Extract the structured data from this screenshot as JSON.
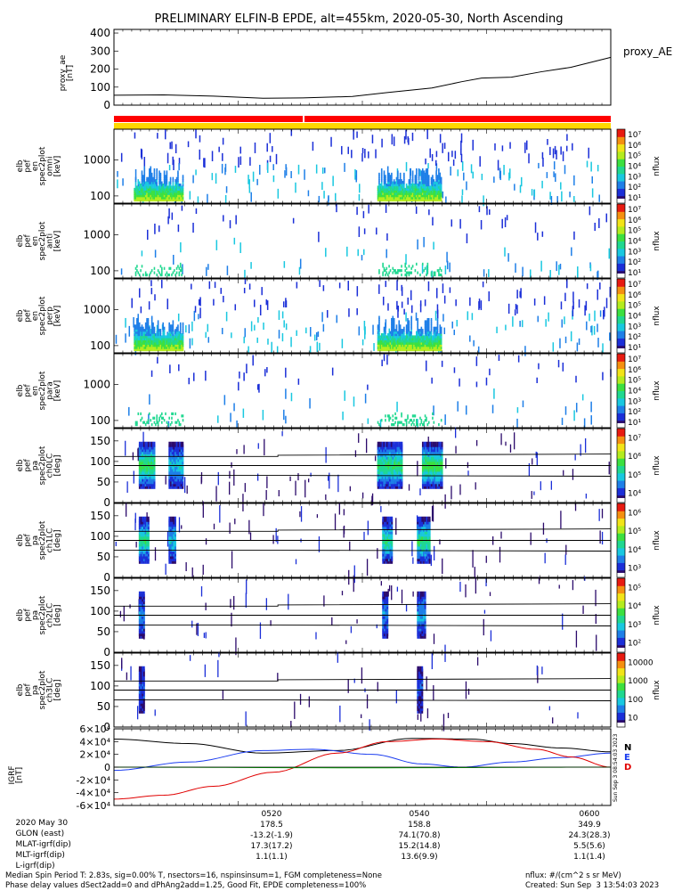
{
  "title": "PRELIMINARY ELFIN-B EPDE, alt=455km, 2020-05-30, North Ascending",
  "colors": {
    "ae_line": "#000000",
    "bar_red": "#ff0000",
    "bar_yellow": "#ffd700",
    "grf_n": "#000000",
    "grf_e": "#1a3cf0",
    "grf_d": "#e00000",
    "grf_z": "#00b000"
  },
  "chart_data": [
    {
      "type": "line",
      "panel": "proxy_ae",
      "ylabel": "proxy_ae\n[nT]",
      "ylabel_lines": [
        "proxy_ae",
        "[nT]"
      ],
      "yticks": [
        "0",
        "100",
        "200",
        "300",
        "400"
      ],
      "ylim": [
        0,
        420
      ],
      "right_label": "proxy_AE",
      "series": [
        {
          "name": "proxy_AE",
          "x": [
            0,
            10,
            20,
            30,
            38,
            48,
            55,
            64,
            70,
            74,
            80,
            86,
            92,
            100
          ],
          "y": [
            55,
            57,
            50,
            38,
            40,
            48,
            70,
            95,
            130,
            150,
            155,
            185,
            210,
            265
          ]
        }
      ]
    },
    {
      "type": "heatmap",
      "panel": "spec_omni",
      "ylabel_lines": [
        "elb",
        "pef",
        "en",
        "spec2plot",
        "omni",
        "[keV]"
      ],
      "yticks": [
        "100",
        "1000"
      ],
      "colorbar": {
        "label": "nflux",
        "ticks": [
          "10¹",
          "10²",
          "10³",
          "10⁴",
          "10⁵",
          "10⁶",
          "10⁷"
        ]
      }
    },
    {
      "type": "heatmap",
      "panel": "spec_anti",
      "ylabel_lines": [
        "elb",
        "pef",
        "en",
        "spec2plot",
        "anti",
        "[keV]"
      ],
      "yticks": [
        "100",
        "1000"
      ],
      "colorbar": {
        "label": "nflux",
        "ticks": [
          "10¹",
          "10²",
          "10³",
          "10⁴",
          "10⁵",
          "10⁶",
          "10⁷"
        ]
      }
    },
    {
      "type": "heatmap",
      "panel": "spec_perp",
      "ylabel_lines": [
        "elb",
        "pef",
        "en",
        "spec2plot",
        "perp",
        "[keV]"
      ],
      "yticks": [
        "100",
        "1000"
      ],
      "colorbar": {
        "label": "nflux",
        "ticks": [
          "10¹",
          "10²",
          "10³",
          "10⁴",
          "10⁵",
          "10⁶",
          "10⁷"
        ]
      }
    },
    {
      "type": "heatmap",
      "panel": "spec_para",
      "ylabel_lines": [
        "elb",
        "pef",
        "en",
        "spec2plot",
        "para",
        "[keV]"
      ],
      "yticks": [
        "100",
        "1000"
      ],
      "colorbar": {
        "label": "nflux",
        "ticks": [
          "10¹",
          "10²",
          "10³",
          "10⁴",
          "10⁵",
          "10⁶",
          "10⁷"
        ]
      }
    },
    {
      "type": "heatmap",
      "panel": "pa_ch0",
      "ylabel_lines": [
        "elb",
        "pef",
        "pa",
        "spec2plot",
        "ch0LC",
        "[deg]"
      ],
      "yticks": [
        "0",
        "50",
        "100",
        "150"
      ],
      "colorbar": {
        "label": "nflux",
        "ticks": [
          "10⁴",
          "10⁵",
          "10⁶",
          "10⁷"
        ]
      }
    },
    {
      "type": "heatmap",
      "panel": "pa_ch1",
      "ylabel_lines": [
        "elb",
        "pef",
        "pa",
        "spec2plot",
        "ch1LC",
        "[deg]"
      ],
      "yticks": [
        "0",
        "50",
        "100",
        "150"
      ],
      "colorbar": {
        "label": "nflux",
        "ticks": [
          "10³",
          "10⁴",
          "10⁵",
          "10⁶"
        ]
      }
    },
    {
      "type": "heatmap",
      "panel": "pa_ch2",
      "ylabel_lines": [
        "elb",
        "pef",
        "pa",
        "spec2plot",
        "ch2LC",
        "[deg]"
      ],
      "yticks": [
        "0",
        "50",
        "100",
        "150"
      ],
      "colorbar": {
        "label": "nflux",
        "ticks": [
          "10²",
          "10³",
          "10⁴",
          "10⁵"
        ]
      }
    },
    {
      "type": "heatmap",
      "panel": "pa_ch3",
      "ylabel_lines": [
        "elb",
        "pef",
        "pa",
        "spec2plot",
        "ch3LC",
        "[deg]"
      ],
      "yticks": [
        "0",
        "50",
        "100",
        "150"
      ],
      "colorbar": {
        "label": "nflux",
        "ticks": [
          "10",
          "100",
          "1000",
          "10000"
        ]
      }
    },
    {
      "type": "line",
      "panel": "igrf",
      "ylabel_lines": [
        "IGRF",
        "[nT]"
      ],
      "yticks": [
        "-6×10⁴",
        "-4×10⁴",
        "-2×10⁴",
        "0",
        "2×10⁴",
        "4×10⁴",
        "6×10⁴"
      ],
      "ylim": [
        -60000,
        60000
      ],
      "legend": [
        "N",
        "E",
        "D"
      ],
      "vertical_note": "Sun Sep  3 08:54:03 2023",
      "series": [
        {
          "name": "N",
          "x": [
            0,
            15,
            30,
            45,
            60,
            72,
            80,
            90,
            100
          ],
          "y": [
            44000,
            37000,
            22000,
            26000,
            45000,
            44000,
            37000,
            30000,
            24000
          ]
        },
        {
          "name": "E",
          "x": [
            0,
            15,
            30,
            40,
            52,
            62,
            70,
            80,
            90,
            100
          ],
          "y": [
            -5000,
            8000,
            26000,
            28000,
            20000,
            5000,
            0,
            8000,
            15000,
            22000
          ]
        },
        {
          "name": "D",
          "x": [
            0,
            10,
            20,
            32,
            45,
            55,
            65,
            75,
            85,
            92,
            100
          ],
          "y": [
            -50000,
            -44000,
            -30000,
            -8000,
            22000,
            40000,
            44000,
            40000,
            28000,
            16000,
            0
          ]
        },
        {
          "name": "",
          "x": [
            0,
            50,
            100
          ],
          "y": [
            0,
            -1000,
            0
          ]
        }
      ]
    }
  ],
  "time_axis": {
    "ticks": [
      "0520",
      "0540",
      "0600"
    ],
    "rows": [
      {
        "label": "2020 May 30",
        "values": [
          "0520",
          "0540",
          "0600"
        ]
      },
      {
        "label": "GLON (east)",
        "values": [
          "178.5",
          "158.8",
          "349.9"
        ]
      },
      {
        "label": "MLAT-igrf(dip)",
        "values": [
          "-13.2(-1.9)",
          "74.1(70.8)",
          "24.3(28.3)"
        ]
      },
      {
        "label": "MLT-igrf(dip)",
        "values": [
          "17.3(17.2)",
          "15.2(14.8)",
          "5.5(5.6)"
        ]
      },
      {
        "label": "L-igrf(dip)",
        "values": [
          "1.1(1.1)",
          "13.6(9.9)",
          "1.1(1.4)"
        ]
      }
    ]
  },
  "footer": {
    "line1": "Median Spin Period T: 2.83s, sig=0.00% T, nsectors=16, nspinsinsum=1, FGM completeness=None",
    "line2": "Phase delay values dSect2add=0 and dPhAng2add=1.25, Good Fit, EPDE completeness=100%",
    "units": "nflux: #/(cm^2 s sr MeV)",
    "created": "Created: Sun Sep  3 13:54:03 2023"
  }
}
